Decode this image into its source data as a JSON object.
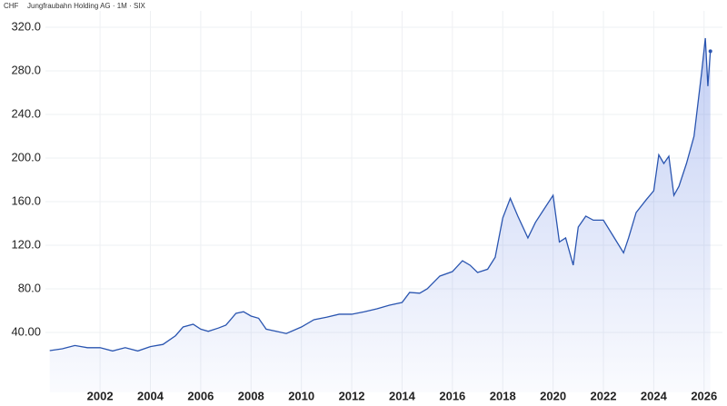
{
  "chart_data": {
    "type": "area",
    "currency": "CHF",
    "title": "Jungfraubahn Holding AG · 1M · SIX",
    "x": [
      2000.0,
      2000.5,
      2001.0,
      2001.5,
      2002.0,
      2002.5,
      2003.0,
      2003.5,
      2004.0,
      2004.5,
      2005.0,
      2005.3,
      2005.7,
      2006.0,
      2006.3,
      2006.7,
      2007.0,
      2007.4,
      2007.7,
      2008.0,
      2008.3,
      2008.6,
      2009.0,
      2009.4,
      2010.0,
      2010.5,
      2011.0,
      2011.5,
      2012.0,
      2012.5,
      2013.0,
      2013.5,
      2014.0,
      2014.3,
      2014.7,
      2015.0,
      2015.5,
      2016.0,
      2016.4,
      2016.7,
      2017.0,
      2017.4,
      2017.7,
      2018.0,
      2018.3,
      2018.6,
      2019.0,
      2019.3,
      2019.6,
      2020.0,
      2020.25,
      2020.5,
      2020.8,
      2021.0,
      2021.3,
      2021.6,
      2022.0,
      2022.4,
      2022.8,
      2023.0,
      2023.3,
      2023.7,
      2024.0,
      2024.2,
      2024.4,
      2024.6,
      2024.8,
      2025.0,
      2025.3,
      2025.6,
      2025.9,
      2026.05,
      2026.15,
      2026.25
    ],
    "series": [
      {
        "color": "#2a55b0",
        "values": [
          23.3,
          25,
          28,
          26,
          26,
          23,
          26,
          23,
          27,
          29,
          37,
          45,
          47.5,
          43,
          41,
          44,
          46.7,
          57.5,
          59,
          55,
          53,
          43,
          41,
          39,
          45,
          51.7,
          54,
          56.7,
          56.7,
          59,
          61.7,
          65,
          67.5,
          76.7,
          76,
          80,
          91.7,
          95.8,
          105.8,
          101.7,
          95,
          98,
          109,
          145,
          163,
          146.7,
          126.7,
          141,
          151.7,
          165.8,
          123,
          126.7,
          101.7,
          136.7,
          146.7,
          143,
          143,
          128,
          113,
          126.7,
          150,
          161.7,
          170,
          203,
          195,
          201.7,
          165.8,
          174,
          195,
          220,
          278,
          310,
          266,
          298
        ]
      }
    ],
    "xlim": [
      1999.83,
      2026.73
    ],
    "ylim": [
      -15,
      335
    ],
    "xticks": [
      2002,
      2004,
      2006,
      2008,
      2010,
      2012,
      2014,
      2016,
      2018,
      2020,
      2022,
      2024,
      2026
    ],
    "yticks": [
      {
        "value": 40,
        "label": "40.00"
      },
      {
        "value": 80,
        "label": "80.0"
      },
      {
        "value": 120,
        "label": "120.0"
      },
      {
        "value": 160,
        "label": "160.0"
      },
      {
        "value": 200,
        "label": "200.0"
      },
      {
        "value": 240,
        "label": "240.0"
      },
      {
        "value": 280,
        "label": "280.0"
      },
      {
        "value": 320,
        "label": "320.0"
      }
    ],
    "grid": true
  }
}
